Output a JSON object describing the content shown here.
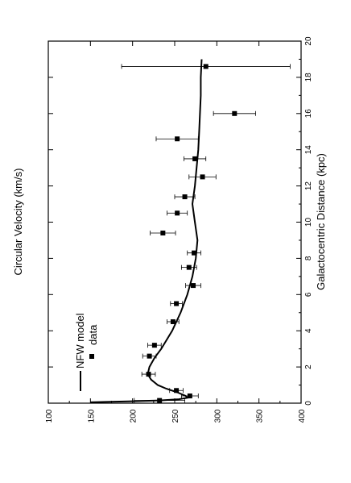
{
  "chart_data": {
    "type": "scatter",
    "orientation": "rotated-90-clockwise",
    "xlabel": "Galactocentric Distance  (kpc)",
    "ylabel": "Circular Velocity  (km/s)",
    "xlim": [
      0,
      20
    ],
    "ylim": [
      100,
      400
    ],
    "x_ticks": [
      0,
      2,
      4,
      6,
      8,
      10,
      12,
      14,
      16,
      18,
      20
    ],
    "y_ticks": [
      100,
      150,
      200,
      250,
      300,
      350,
      400
    ],
    "grid": false,
    "legend": {
      "placement": "top-left",
      "entries": [
        {
          "label": "NFW model",
          "marker": "line"
        },
        {
          "label": "data",
          "marker": "square"
        }
      ]
    },
    "series": [
      {
        "name": "data",
        "marker": "square",
        "points": [
          {
            "x": 0.15,
            "y": 232,
            "err": 30
          },
          {
            "x": 0.4,
            "y": 268,
            "err": 10
          },
          {
            "x": 0.7,
            "y": 252,
            "err": 8
          },
          {
            "x": 1.6,
            "y": 219,
            "err": 8
          },
          {
            "x": 2.6,
            "y": 220,
            "err": 8
          },
          {
            "x": 3.2,
            "y": 226,
            "err": 8
          },
          {
            "x": 4.5,
            "y": 248,
            "err": 7
          },
          {
            "x": 5.5,
            "y": 252,
            "err": 7
          },
          {
            "x": 6.5,
            "y": 272,
            "err": 9
          },
          {
            "x": 7.5,
            "y": 267,
            "err": 9
          },
          {
            "x": 8.3,
            "y": 273,
            "err": 8
          },
          {
            "x": 9.4,
            "y": 236,
            "err": 15
          },
          {
            "x": 10.5,
            "y": 253,
            "err": 12
          },
          {
            "x": 11.4,
            "y": 262,
            "err": 12
          },
          {
            "x": 12.5,
            "y": 283,
            "err": 16
          },
          {
            "x": 13.5,
            "y": 274,
            "err": 13
          },
          {
            "x": 14.6,
            "y": 253,
            "err": 25
          },
          {
            "x": 16.0,
            "y": 321,
            "err": 25
          },
          {
            "x": 18.6,
            "y": 287,
            "err": 100
          }
        ]
      },
      {
        "name": "NFW model",
        "marker": "line",
        "points": [
          {
            "x": 0.05,
            "y": 150
          },
          {
            "x": 0.1,
            "y": 195
          },
          {
            "x": 0.15,
            "y": 232
          },
          {
            "x": 0.22,
            "y": 255
          },
          {
            "x": 0.3,
            "y": 265
          },
          {
            "x": 0.4,
            "y": 263
          },
          {
            "x": 0.6,
            "y": 253
          },
          {
            "x": 0.8,
            "y": 240
          },
          {
            "x": 1.0,
            "y": 230
          },
          {
            "x": 1.3,
            "y": 222
          },
          {
            "x": 1.6,
            "y": 218
          },
          {
            "x": 2.0,
            "y": 220
          },
          {
            "x": 2.5,
            "y": 226
          },
          {
            "x": 3.0,
            "y": 234
          },
          {
            "x": 4.0,
            "y": 247
          },
          {
            "x": 5.0,
            "y": 257
          },
          {
            "x": 6.0,
            "y": 265
          },
          {
            "x": 7.0,
            "y": 271
          },
          {
            "x": 8.0,
            "y": 275
          },
          {
            "x": 9.0,
            "y": 277
          },
          {
            "x": 10.0,
            "y": 274
          },
          {
            "x": 11.0,
            "y": 271
          },
          {
            "x": 12.0,
            "y": 274
          },
          {
            "x": 13.0,
            "y": 276
          },
          {
            "x": 14.0,
            "y": 278
          },
          {
            "x": 15.0,
            "y": 279
          },
          {
            "x": 16.0,
            "y": 280
          },
          {
            "x": 17.0,
            "y": 281
          },
          {
            "x": 18.0,
            "y": 281
          },
          {
            "x": 19.0,
            "y": 282
          }
        ]
      }
    ]
  }
}
